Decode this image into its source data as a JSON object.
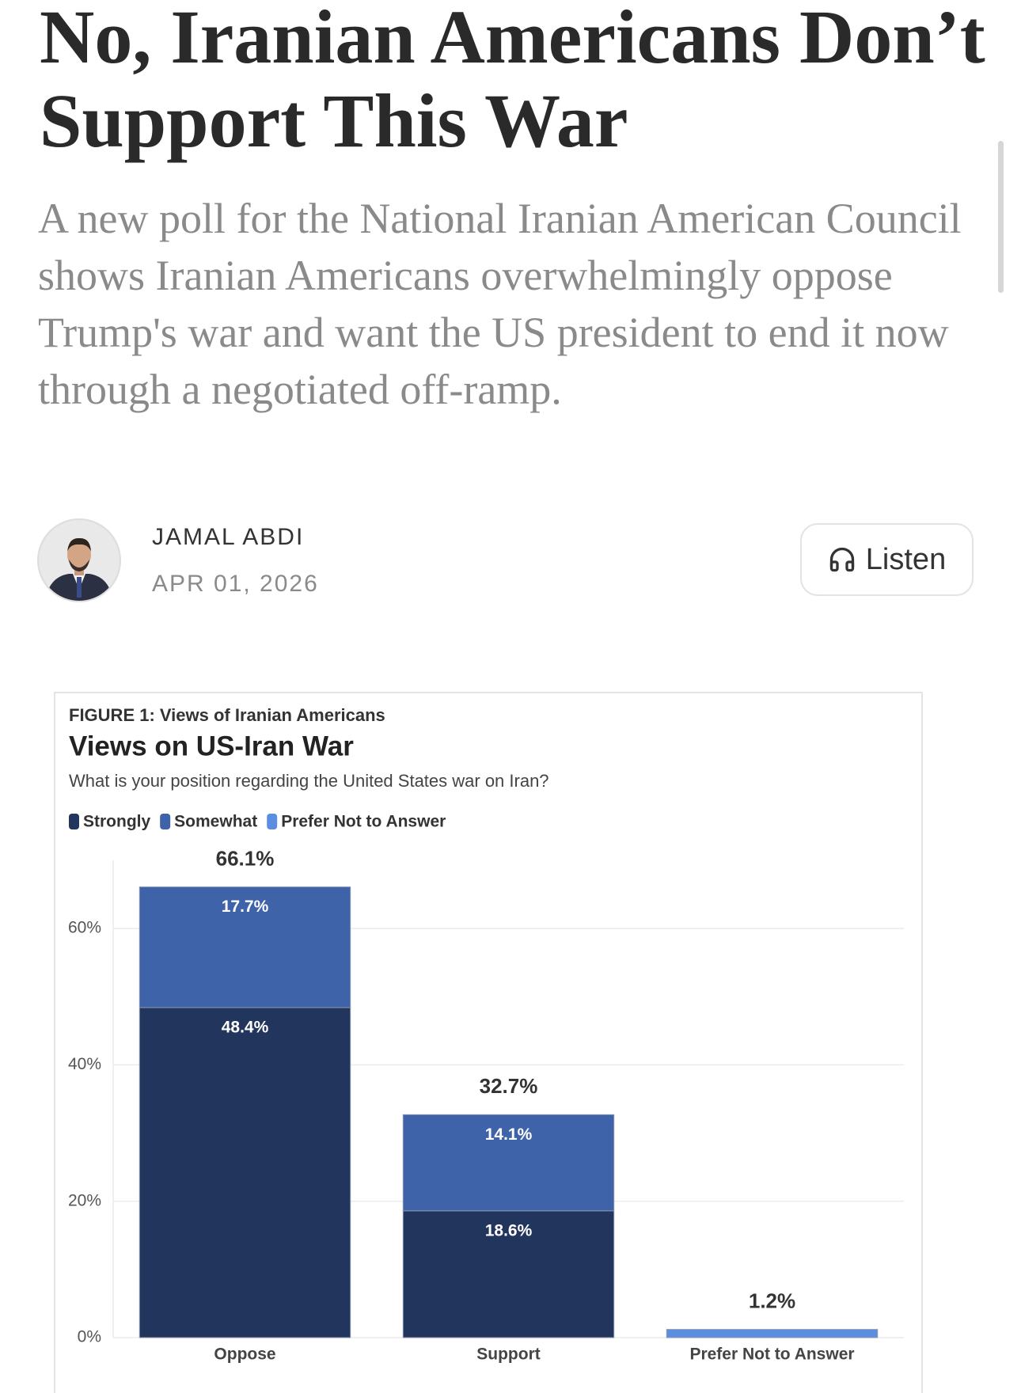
{
  "article": {
    "title": "No, Iranian Americans Don’t Support This War",
    "subtitle": "A new poll for the National Iranian American Council shows Iranian Americans overwhelmingly oppose Trump's war and want the US president to end it now through a negotiated off-ramp.",
    "author": "JAMAL ABDI",
    "date": "APR 01, 2026",
    "listen": "Listen"
  },
  "chart_data": {
    "type": "bar",
    "stacked": true,
    "figure_label": "FIGURE 1: Views of Iranian Americans",
    "title": "Views on US-Iran War",
    "subtitle": "What is your position regarding the United States war on Iran?",
    "categories": [
      "Oppose",
      "Support",
      "Prefer Not to Answer"
    ],
    "series": [
      {
        "name": "Strongly",
        "color": "#22355c",
        "values": [
          48.4,
          18.6,
          null
        ],
        "value_labels": [
          "48.4%",
          "18.6%",
          null
        ]
      },
      {
        "name": "Somewhat",
        "color": "#3f63a8",
        "values": [
          17.7,
          14.1,
          null
        ],
        "value_labels": [
          "17.7%",
          "14.1%",
          null
        ]
      },
      {
        "name": "Prefer Not to Answer",
        "color": "#5b8ee0",
        "values": [
          null,
          null,
          1.2
        ]
      }
    ],
    "totals": {
      "values": [
        66.1,
        32.7,
        1.2
      ],
      "labels": [
        "66.1%",
        "32.7%",
        "1.2%"
      ]
    },
    "ylim": [
      0,
      70
    ],
    "yticks": [
      {
        "value": 0,
        "label": "0%"
      },
      {
        "value": 20,
        "label": "20%"
      },
      {
        "value": 40,
        "label": "40%"
      },
      {
        "value": 60,
        "label": "60%"
      }
    ],
    "grid": true
  }
}
